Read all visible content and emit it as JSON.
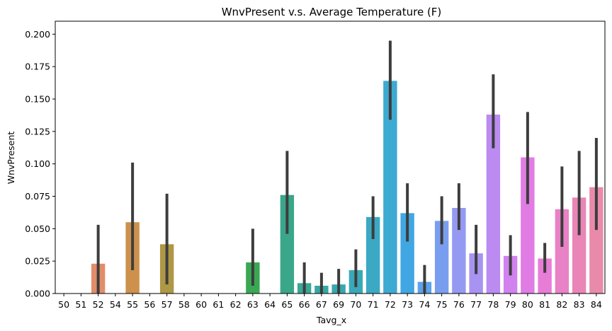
{
  "chart_data": {
    "type": "bar",
    "title": "WnvPresent v.s. Average Temperature (F)",
    "xlabel": "Tavg_x",
    "ylabel": "WnvPresent",
    "ylim": [
      0,
      0.21
    ],
    "yticks": [
      "0.000",
      "0.025",
      "0.050",
      "0.075",
      "0.100",
      "0.125",
      "0.150",
      "0.175",
      "0.200"
    ],
    "ytick_values": [
      0,
      0.025,
      0.05,
      0.075,
      0.1,
      0.125,
      0.15,
      0.175,
      0.2
    ],
    "grid": false,
    "legend": "none",
    "categories": [
      "50",
      "51",
      "52",
      "54",
      "55",
      "56",
      "57",
      "58",
      "60",
      "61",
      "62",
      "63",
      "64",
      "65",
      "66",
      "67",
      "69",
      "70",
      "71",
      "72",
      "73",
      "74",
      "75",
      "76",
      "77",
      "78",
      "79",
      "80",
      "81",
      "82",
      "83",
      "84"
    ],
    "values": [
      0,
      0,
      0.023,
      0,
      0.055,
      0,
      0.038,
      0,
      0,
      0,
      0,
      0.024,
      0,
      0.076,
      0.008,
      0.006,
      0.007,
      0.018,
      0.059,
      0.164,
      0.062,
      0.009,
      0.056,
      0.066,
      0.031,
      0.138,
      0.029,
      0.105,
      0.027,
      0.065,
      0.074,
      0.082
    ],
    "error_low": [
      0,
      0,
      0,
      0,
      0.018,
      0,
      0.007,
      0,
      0,
      0,
      0,
      0.006,
      0,
      0.046,
      0,
      0,
      0,
      0.005,
      0.042,
      0.134,
      0.04,
      0,
      0.038,
      0.049,
      0.015,
      0.112,
      0.014,
      0.069,
      0.016,
      0.036,
      0.045,
      0.049
    ],
    "error_high": [
      0,
      0,
      0.053,
      0,
      0.101,
      0,
      0.077,
      0,
      0,
      0,
      0,
      0.05,
      0,
      0.11,
      0.024,
      0.016,
      0.019,
      0.034,
      0.075,
      0.195,
      0.085,
      0.022,
      0.075,
      0.085,
      0.053,
      0.169,
      0.045,
      0.14,
      0.039,
      0.098,
      0.11,
      0.12
    ],
    "colors": [
      "#ea96a3",
      "#eb9a8b",
      "#e18d6a",
      "#d8925a",
      "#cd914c",
      "#be9345",
      "#ae9745",
      "#9d9a47",
      "#889e4a",
      "#71a24d",
      "#4fa851",
      "#39a853",
      "#3aa772",
      "#3aa68a",
      "#38a797",
      "#37a8a3",
      "#38a8ae",
      "#39a9b8",
      "#3ba9c4",
      "#3daad2",
      "#41a7e3",
      "#5ba3eb",
      "#7a9eef",
      "#9499f2",
      "#a893f2",
      "#bb8bf2",
      "#d182ef",
      "#e17ce5",
      "#e87dd7",
      "#e981c7",
      "#ea85b7",
      "#ea8aab"
    ]
  }
}
